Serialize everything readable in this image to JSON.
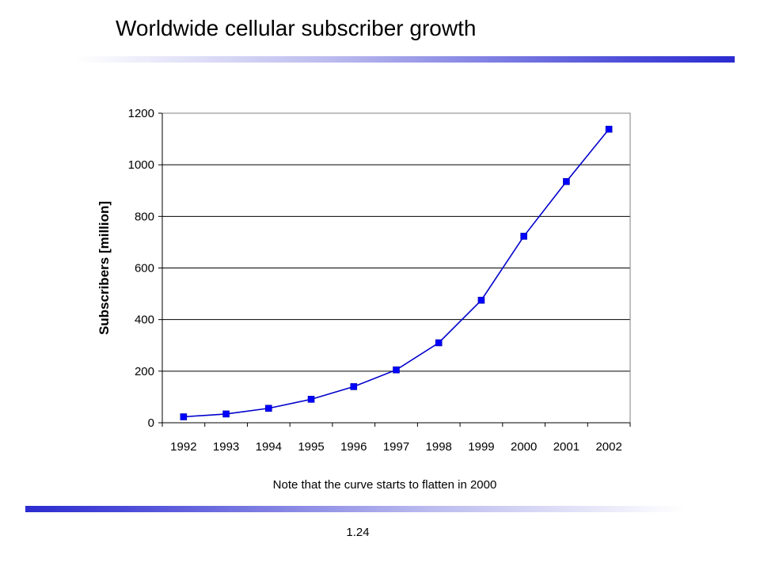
{
  "slide": {
    "title": "Worldwide cellular subscriber growth",
    "note": "Note that the curve starts to flatten in 2000",
    "page_number": "1.24",
    "accent_color": "#2b2bd0"
  },
  "chart_data": {
    "type": "line",
    "title": "",
    "xlabel": "",
    "ylabel": "Subscribers [million]",
    "categories": [
      "1992",
      "1993",
      "1994",
      "1995",
      "1996",
      "1997",
      "1998",
      "1999",
      "2000",
      "2001",
      "2002"
    ],
    "series": [
      {
        "values": [
          23,
          34,
          56,
          91,
          140,
          205,
          310,
          475,
          723,
          935,
          1138
        ],
        "color": "#0000ff",
        "line_color": "#0000cc",
        "marker": "square"
      }
    ],
    "ylim": [
      0,
      1200
    ],
    "yticks": [
      0,
      200,
      400,
      600,
      800,
      1000,
      1200
    ],
    "grid": "horizontal",
    "legend": "none"
  }
}
